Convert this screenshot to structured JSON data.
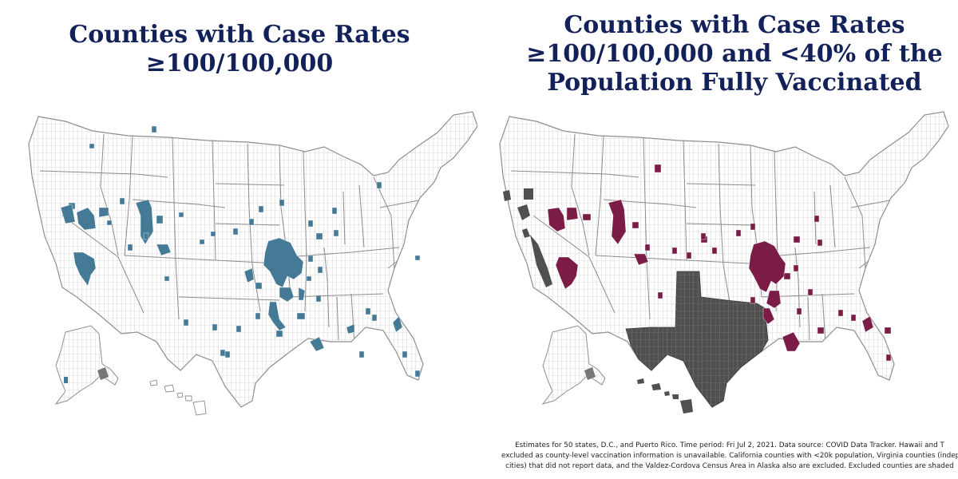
{
  "titles": {
    "left": [
      "Counties with Case Rates",
      "≥100/100,000"
    ],
    "right": [
      "Counties with Case Rates",
      "≥100/100,000 and <40% of the",
      "Population Fully Vaccinated"
    ]
  },
  "colors": {
    "highlight_left": "#447a96",
    "highlight_right": "#7a1c45",
    "excluded": "#505050",
    "county_lines": "#b9b9b9",
    "state_lines": "#8c8c8c",
    "title": "#13215a"
  },
  "footnote": [
    "Estimates for 50 states, D.C., and Puerto Rico. Time period: Fri Jul 2, 2021. Data source: COVID Data Tracker. Hawaii and T",
    "excluded as county-level vaccination information is unavailable. California counties with <20k population, Virginia counties (indep",
    "cities) that did not report data, and the Valdez-Cordova Census Area in Alaska also are excluded. Excluded counties are shaded"
  ],
  "maps": {
    "left": {
      "highlight": "high case rate counties",
      "excluded": [
        "Valdez-Cordova Census Area"
      ]
    },
    "right": {
      "highlight": "high case rate, low vaccination counties",
      "excluded": [
        "Texas",
        "Hawaii",
        "California counties <20k population",
        "Valdez-Cordova Census Area"
      ]
    }
  }
}
